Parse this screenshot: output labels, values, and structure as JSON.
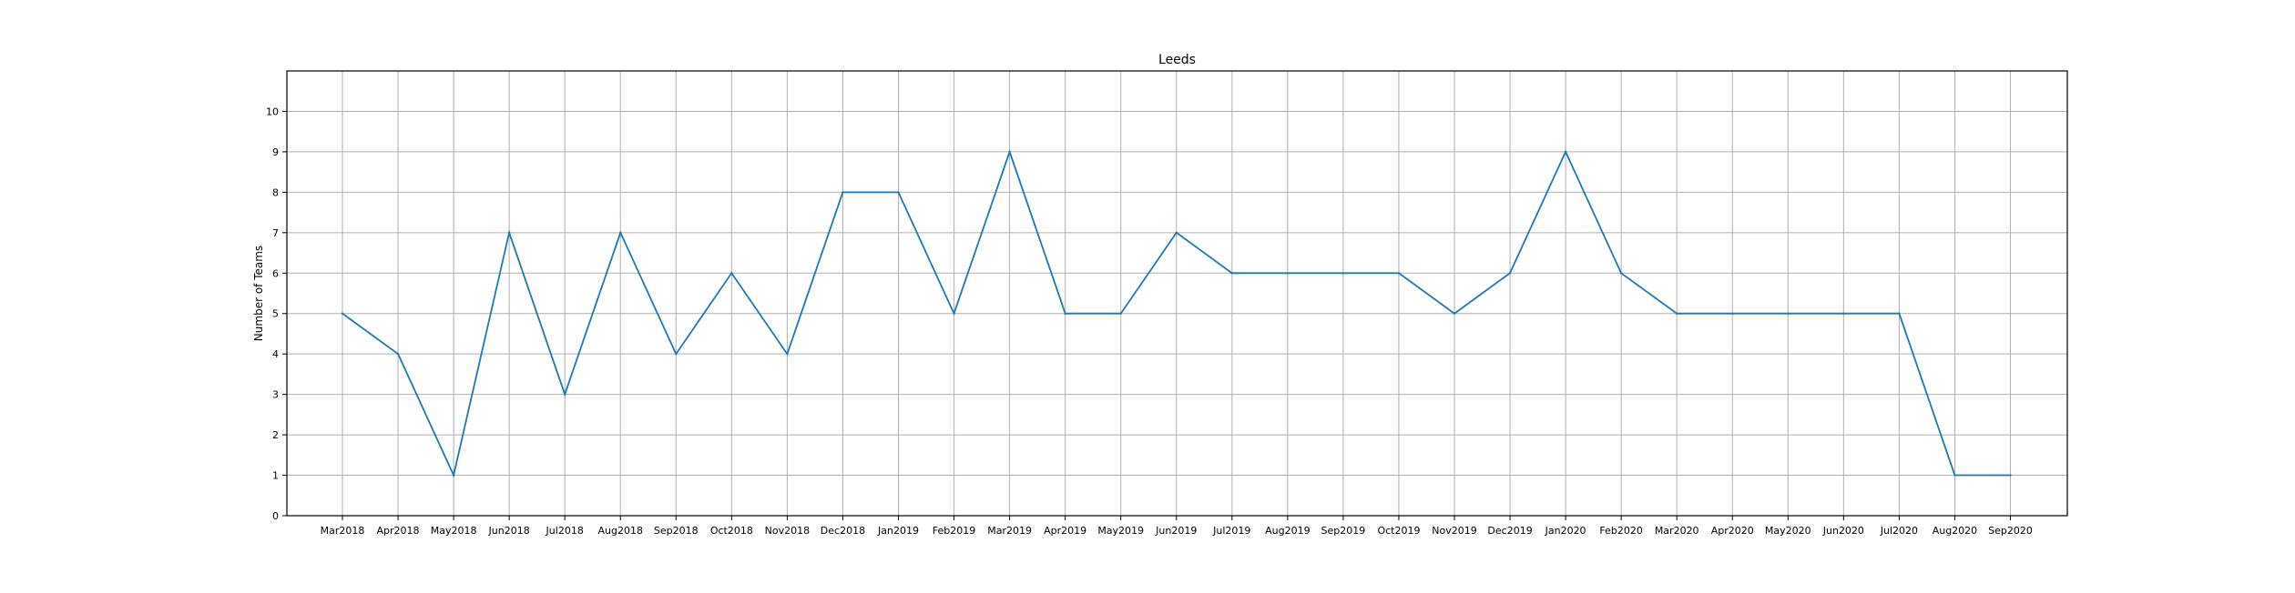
{
  "chart_data": {
    "type": "line",
    "title": "Leeds",
    "xlabel": "",
    "ylabel": "Number of Teams",
    "categories": [
      "Mar2018",
      "Apr2018",
      "May2018",
      "Jun2018",
      "Jul2018",
      "Aug2018",
      "Sep2018",
      "Oct2018",
      "Nov2018",
      "Dec2018",
      "Jan2019",
      "Feb2019",
      "Mar2019",
      "Apr2019",
      "May2019",
      "Jun2019",
      "Jul2019",
      "Aug2019",
      "Sep2019",
      "Oct2019",
      "Nov2019",
      "Dec2019",
      "Jan2020",
      "Feb2020",
      "Mar2020",
      "Apr2020",
      "May2020",
      "Jun2020",
      "Jul2020",
      "Aug2020",
      "Sep2020"
    ],
    "series": [
      {
        "values": [
          5,
          4,
          1,
          7,
          3,
          7,
          4,
          6,
          4,
          8,
          8,
          5,
          9,
          5,
          5,
          7,
          6,
          6,
          6,
          6,
          5,
          6,
          9,
          6,
          5,
          5,
          5,
          5,
          5,
          1,
          1
        ],
        "color": "#1f77b4"
      }
    ],
    "ylim": [
      0,
      11
    ],
    "yticks": [
      0,
      1,
      2,
      3,
      4,
      5,
      6,
      7,
      8,
      9,
      10
    ],
    "grid": true,
    "legend": "none"
  }
}
